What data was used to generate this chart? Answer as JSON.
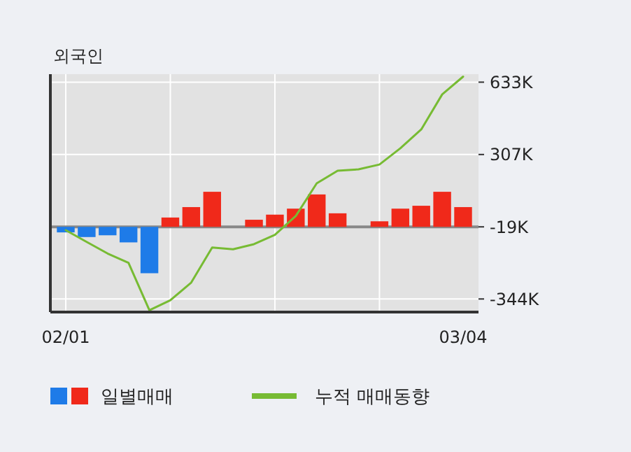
{
  "chart_data": {
    "type": "bar",
    "title": "외국인",
    "categories": [
      "02/01",
      null,
      null,
      null,
      null,
      null,
      null,
      null,
      null,
      null,
      null,
      null,
      null,
      null,
      null,
      null,
      null,
      null,
      null,
      "03/04"
    ],
    "series": [
      {
        "name": "일별매매",
        "colors": [
          "#1e7be8",
          "#1e7be8",
          "#1e7be8",
          "#1e7be8",
          "#1e7be8",
          "#f0291a",
          "#f0291a",
          "#f0291a",
          "#f0291a",
          "#f0291a",
          "#f0291a",
          "#f0291a",
          "#f0291a",
          "#f0291a",
          "#f0291a",
          "#f0291a",
          "#f0291a",
          "#f0291a",
          "#f0291a",
          "#f0291a"
        ],
        "base": [
          -19,
          -19,
          -19,
          -19,
          -19,
          -19,
          -19,
          -19,
          null,
          -19,
          -19,
          -19,
          -19,
          -19,
          null,
          -19,
          -19,
          -19,
          -19,
          -19
        ],
        "values": [
          -25,
          -46,
          -38,
          -70,
          -209,
          42,
          89,
          158,
          null,
          32,
          55,
          82,
          146,
          61,
          null,
          25,
          82,
          95,
          158,
          89
        ]
      },
      {
        "name": "누적 매매동향",
        "type": "line",
        "color": "#77bb33",
        "values": [
          -34,
          -87,
          -139,
          -181,
          -395,
          -350,
          -270,
          -112,
          -120,
          -97,
          -55,
          30,
          177,
          234,
          240,
          262,
          335,
          420,
          578,
          658
        ]
      }
    ],
    "ylim": [
      -403,
      669
    ],
    "yticks": [
      {
        "value": 633,
        "label": "633K"
      },
      {
        "value": 307,
        "label": "307K"
      },
      {
        "value": -19,
        "label": "-19K"
      },
      {
        "value": -344,
        "label": "-344K"
      }
    ],
    "ref_lines": [
      {
        "axis": "y",
        "value": -19,
        "color": "#888888"
      }
    ],
    "grid": true,
    "legend": "bottom"
  }
}
